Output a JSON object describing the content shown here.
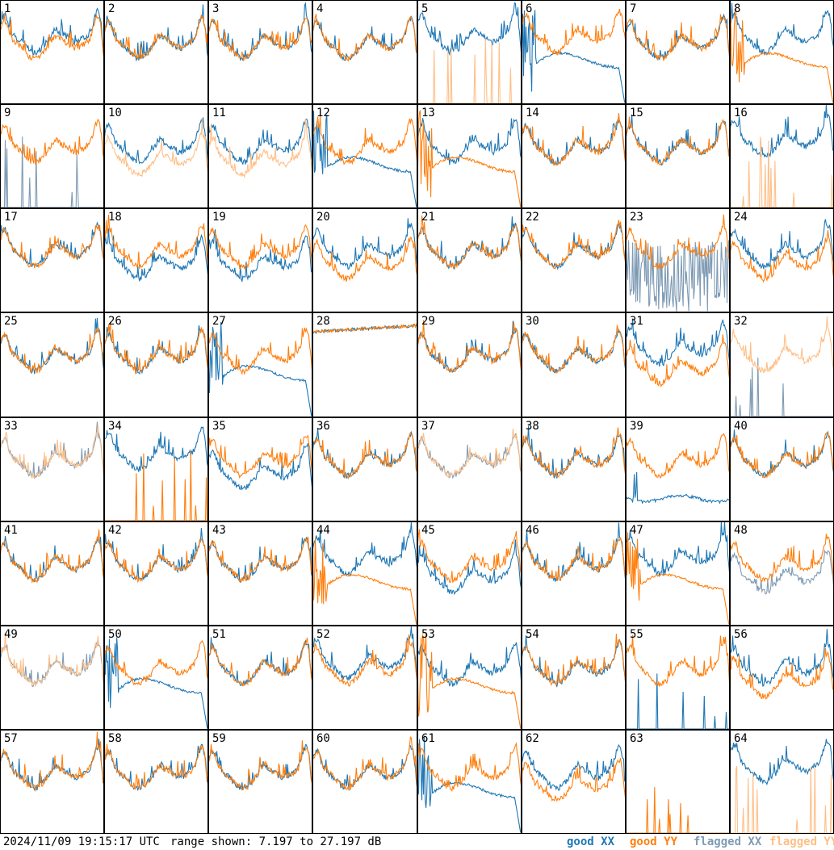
{
  "footer": {
    "timestamp": "2024/11/09 19:15:17 UTC",
    "range": "range shown: 7.197 to 27.197 dB"
  },
  "legend": [
    {
      "label": "good XX",
      "color": "#1f77b4"
    },
    {
      "label": "good YY",
      "color": "#ff7f0e"
    },
    {
      "label": "flagged XX",
      "color": "#7f9bb4"
    },
    {
      "label": "flagged YY",
      "color": "#ffbf87"
    }
  ],
  "chart_data": {
    "type": "line",
    "grid": "8x8 small multiples",
    "ylim": [
      7.197,
      27.197
    ],
    "yunit": "dB",
    "panels": [
      {
        "label": "1",
        "xx": "h",
        "yy": "p",
        "xs": "good",
        "ys": "good"
      },
      {
        "label": "2",
        "xx": "n",
        "yy": "n",
        "xs": "good",
        "ys": "good"
      },
      {
        "label": "3",
        "xx": "n",
        "yy": "n",
        "xs": "good",
        "ys": "good"
      },
      {
        "label": "4",
        "xx": "n",
        "yy": "n",
        "xs": "good",
        "ys": "good"
      },
      {
        "label": "5",
        "xx": "h",
        "yy": "s",
        "xs": "good",
        "ys": "flag"
      },
      {
        "label": "6",
        "xx": "d",
        "yy": "h",
        "xs": "good",
        "ys": "good"
      },
      {
        "label": "7",
        "xx": "n",
        "yy": "n",
        "xs": "good",
        "ys": "good"
      },
      {
        "label": "8",
        "xx": "h",
        "yy": "d",
        "xs": "good",
        "ys": "good"
      },
      {
        "label": "9",
        "xx": "s",
        "yy": "n",
        "xs": "flag",
        "ys": "good"
      },
      {
        "label": "10",
        "xx": "n",
        "yy": "l",
        "xs": "good",
        "ys": "flag"
      },
      {
        "label": "11",
        "xx": "n",
        "yy": "l",
        "xs": "good",
        "ys": "flag"
      },
      {
        "label": "12",
        "xx": "d",
        "yy": "n",
        "xs": "good",
        "ys": "good"
      },
      {
        "label": "13",
        "xx": "n",
        "yy": "d",
        "xs": "good",
        "ys": "good"
      },
      {
        "label": "14",
        "xx": "n",
        "yy": "n",
        "xs": "good",
        "ys": "good"
      },
      {
        "label": "15",
        "xx": "n",
        "yy": "n",
        "xs": "good",
        "ys": "good"
      },
      {
        "label": "16",
        "xx": "h",
        "yy": "s",
        "xs": "good",
        "ys": "flag"
      },
      {
        "label": "17",
        "xx": "n",
        "yy": "n",
        "xs": "good",
        "ys": "good"
      },
      {
        "label": "18",
        "xx": "l",
        "yy": "n",
        "xs": "good",
        "ys": "good"
      },
      {
        "label": "19",
        "xx": "l",
        "yy": "n",
        "xs": "good",
        "ys": "good"
      },
      {
        "label": "20",
        "xx": "n",
        "yy": "l",
        "xs": "good",
        "ys": "good"
      },
      {
        "label": "21",
        "xx": "n",
        "yy": "n",
        "xs": "good",
        "ys": "good"
      },
      {
        "label": "22",
        "xx": "n",
        "yy": "n",
        "xs": "good",
        "ys": "good"
      },
      {
        "label": "23",
        "xx": "j",
        "yy": "n",
        "xs": "flag",
        "ys": "good"
      },
      {
        "label": "24",
        "xx": "n",
        "yy": "l",
        "xs": "good",
        "ys": "good"
      },
      {
        "label": "25",
        "xx": "n",
        "yy": "n",
        "xs": "good",
        "ys": "good"
      },
      {
        "label": "26",
        "xx": "n",
        "yy": "n",
        "xs": "good",
        "ys": "good"
      },
      {
        "label": "27",
        "xx": "d",
        "yy": "n",
        "xs": "good",
        "ys": "good"
      },
      {
        "label": "28",
        "xx": "f",
        "yy": "f",
        "xs": "good",
        "ys": "good"
      },
      {
        "label": "29",
        "xx": "n",
        "yy": "n",
        "xs": "good",
        "ys": "good"
      },
      {
        "label": "30",
        "xx": "n",
        "yy": "n",
        "xs": "good",
        "ys": "good"
      },
      {
        "label": "31",
        "xx": "h",
        "yy": "l",
        "xs": "good",
        "ys": "good"
      },
      {
        "label": "32",
        "xx": "s",
        "yy": "n",
        "xs": "flag",
        "ys": "flag"
      },
      {
        "label": "33",
        "xx": "n",
        "yy": "n",
        "xs": "flag",
        "ys": "flag"
      },
      {
        "label": "34",
        "xx": "h",
        "yy": "s",
        "xs": "good",
        "ys": "good"
      },
      {
        "label": "35",
        "xx": "l",
        "yy": "n",
        "xs": "good",
        "ys": "good"
      },
      {
        "label": "36",
        "xx": "n",
        "yy": "n",
        "xs": "good",
        "ys": "good"
      },
      {
        "label": "37",
        "xx": "n",
        "yy": "n",
        "xs": "flag",
        "ys": "flag"
      },
      {
        "label": "38",
        "xx": "n",
        "yy": "n",
        "xs": "good",
        "ys": "good"
      },
      {
        "label": "39",
        "xx": "v",
        "yy": "n",
        "xs": "good",
        "ys": "good"
      },
      {
        "label": "40",
        "xx": "n",
        "yy": "n",
        "xs": "good",
        "ys": "good"
      },
      {
        "label": "41",
        "xx": "n",
        "yy": "n",
        "xs": "good",
        "ys": "good"
      },
      {
        "label": "42",
        "xx": "n",
        "yy": "n",
        "xs": "good",
        "ys": "good"
      },
      {
        "label": "43",
        "xx": "n",
        "yy": "n",
        "xs": "good",
        "ys": "good"
      },
      {
        "label": "44",
        "xx": "h",
        "yy": "d",
        "xs": "good",
        "ys": "good"
      },
      {
        "label": "45",
        "xx": "l",
        "yy": "n",
        "xs": "good",
        "ys": "good"
      },
      {
        "label": "46",
        "xx": "n",
        "yy": "n",
        "xs": "good",
        "ys": "good"
      },
      {
        "label": "47",
        "xx": "h",
        "yy": "d",
        "xs": "good",
        "ys": "good"
      },
      {
        "label": "48",
        "xx": "l",
        "yy": "n",
        "xs": "flag",
        "ys": "good"
      },
      {
        "label": "49",
        "xx": "n",
        "yy": "n",
        "xs": "flag",
        "ys": "flag"
      },
      {
        "label": "50",
        "xx": "d",
        "yy": "n",
        "xs": "good",
        "ys": "good"
      },
      {
        "label": "51",
        "xx": "n",
        "yy": "n",
        "xs": "good",
        "ys": "good"
      },
      {
        "label": "52",
        "xx": "h",
        "yy": "n",
        "xs": "good",
        "ys": "good"
      },
      {
        "label": "53",
        "xx": "n",
        "yy": "d",
        "xs": "good",
        "ys": "good"
      },
      {
        "label": "54",
        "xx": "n",
        "yy": "n",
        "xs": "good",
        "ys": "good"
      },
      {
        "label": "55",
        "xx": "s",
        "yy": "n",
        "xs": "good",
        "ys": "good"
      },
      {
        "label": "56",
        "xx": "n",
        "yy": "l",
        "xs": "good",
        "ys": "good"
      },
      {
        "label": "57",
        "xx": "n",
        "yy": "n",
        "xs": "good",
        "ys": "good"
      },
      {
        "label": "58",
        "xx": "n",
        "yy": "n",
        "xs": "good",
        "ys": "good"
      },
      {
        "label": "59",
        "xx": "n",
        "yy": "n",
        "xs": "good",
        "ys": "good"
      },
      {
        "label": "60",
        "xx": "n",
        "yy": "n",
        "xs": "good",
        "ys": "good"
      },
      {
        "label": "61",
        "xx": "d",
        "yy": "n",
        "xs": "good",
        "ys": "good"
      },
      {
        "label": "62",
        "xx": "n",
        "yy": "l",
        "xs": "good",
        "ys": "good"
      },
      {
        "label": "63",
        "xx": "e",
        "yy": "s",
        "xs": "good",
        "ys": "good"
      },
      {
        "label": "64",
        "xx": "h",
        "yy": "s",
        "xs": "good",
        "ys": "flag"
      }
    ]
  }
}
